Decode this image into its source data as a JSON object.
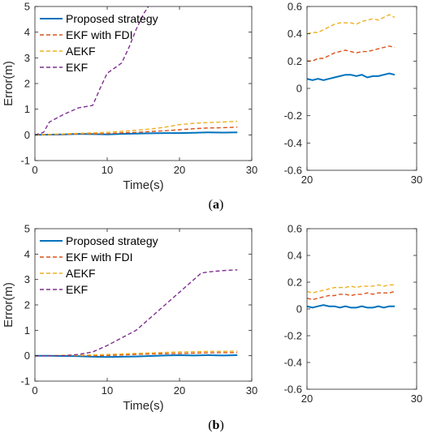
{
  "series_colors": {
    "proposed": "#0072BD",
    "ekf_fdi": "#D95319",
    "aekf": "#EDB120",
    "ekf": "#7E2F8E"
  },
  "legend": [
    "Proposed strategy",
    "EKF with FDI",
    "AEKF",
    "EKF"
  ],
  "chart_data": [
    {
      "type": "line",
      "panel": "(a) left",
      "caption_letter": "a",
      "xlabel": "Time(s)",
      "ylabel": "Error(m)",
      "xlim": [
        0,
        30
      ],
      "ylim": [
        -1,
        5
      ],
      "xticks": [
        0,
        10,
        20,
        30
      ],
      "yticks": [
        -1,
        0,
        1,
        2,
        3,
        4,
        5
      ],
      "grid": false,
      "legend_position": "top-left",
      "series": [
        {
          "name": "Proposed strategy",
          "style": "solid",
          "x": [
            0,
            2,
            4,
            6,
            8,
            10,
            12,
            14,
            16,
            18,
            20,
            22,
            24,
            26,
            28
          ],
          "y": [
            0,
            0.01,
            0.02,
            0.04,
            0.03,
            0.02,
            0.04,
            0.05,
            0.06,
            0.07,
            0.07,
            0.08,
            0.1,
            0.09,
            0.1
          ]
        },
        {
          "name": "EKF with FDI",
          "style": "dashed",
          "x": [
            0,
            2,
            4,
            6,
            8,
            10,
            12,
            14,
            16,
            18,
            20,
            22,
            24,
            26,
            28
          ],
          "y": [
            0,
            0.01,
            0.02,
            0.04,
            0.04,
            0.05,
            0.08,
            0.1,
            0.13,
            0.16,
            0.2,
            0.24,
            0.27,
            0.28,
            0.3
          ]
        },
        {
          "name": "AEKF",
          "style": "dashed",
          "x": [
            0,
            2,
            4,
            6,
            8,
            10,
            12,
            14,
            16,
            18,
            20,
            22,
            24,
            26,
            28
          ],
          "y": [
            0,
            0.02,
            0.04,
            0.06,
            0.08,
            0.1,
            0.14,
            0.18,
            0.23,
            0.3,
            0.4,
            0.45,
            0.48,
            0.5,
            0.53
          ]
        },
        {
          "name": "EKF",
          "style": "dashed",
          "x": [
            0,
            1.2,
            2,
            4,
            6,
            8,
            9,
            10,
            11,
            12,
            13,
            14,
            15,
            15.7
          ],
          "y": [
            0,
            0.1,
            0.5,
            0.8,
            1.05,
            1.15,
            1.8,
            2.4,
            2.6,
            2.8,
            3.4,
            4.1,
            4.7,
            5
          ]
        }
      ]
    },
    {
      "type": "line",
      "panel": "(a) right",
      "xlim": [
        20,
        30
      ],
      "ylim": [
        -0.6,
        0.6
      ],
      "xticks": [
        20,
        30
      ],
      "yticks": [
        -0.6,
        -0.4,
        -0.2,
        0,
        0.2,
        0.4,
        0.6
      ],
      "grid": false,
      "series": [
        {
          "name": "Proposed strategy",
          "style": "solid",
          "x": [
            20,
            20.5,
            21,
            21.5,
            22,
            22.5,
            23,
            23.5,
            24,
            24.5,
            25,
            25.5,
            26,
            26.5,
            27,
            27.5,
            28
          ],
          "y": [
            0.07,
            0.06,
            0.07,
            0.06,
            0.07,
            0.08,
            0.09,
            0.1,
            0.1,
            0.09,
            0.1,
            0.08,
            0.09,
            0.09,
            0.1,
            0.11,
            0.1
          ]
        },
        {
          "name": "EKF with FDI",
          "style": "dashed",
          "x": [
            20,
            20.5,
            21,
            21.5,
            22,
            22.5,
            23,
            23.5,
            24,
            24.5,
            25,
            25.5,
            26,
            26.5,
            27,
            27.5,
            28
          ],
          "y": [
            0.2,
            0.2,
            0.22,
            0.22,
            0.24,
            0.26,
            0.27,
            0.28,
            0.27,
            0.26,
            0.27,
            0.27,
            0.28,
            0.29,
            0.3,
            0.31,
            0.3
          ]
        },
        {
          "name": "AEKF",
          "style": "dashed",
          "x": [
            20,
            20.5,
            21,
            21.5,
            22,
            22.5,
            23,
            23.5,
            24,
            24.5,
            25,
            25.5,
            26,
            26.5,
            27,
            27.5,
            28
          ],
          "y": [
            0.4,
            0.41,
            0.41,
            0.43,
            0.45,
            0.47,
            0.48,
            0.48,
            0.48,
            0.47,
            0.49,
            0.5,
            0.51,
            0.5,
            0.52,
            0.54,
            0.52
          ]
        }
      ]
    },
    {
      "type": "line",
      "panel": "(b) left",
      "caption_letter": "b",
      "xlabel": "Time(s)",
      "ylabel": "Error(m)",
      "xlim": [
        0,
        30
      ],
      "ylim": [
        -1,
        5
      ],
      "xticks": [
        0,
        10,
        20,
        30
      ],
      "yticks": [
        -1,
        0,
        1,
        2,
        3,
        4,
        5
      ],
      "grid": false,
      "legend_position": "top-left",
      "series": [
        {
          "name": "Proposed strategy",
          "style": "solid",
          "x": [
            0,
            2,
            4,
            6,
            8,
            10,
            12,
            14,
            16,
            18,
            20,
            22,
            24,
            26,
            28
          ],
          "y": [
            0,
            0,
            -0.01,
            -0.02,
            -0.04,
            -0.05,
            -0.04,
            -0.03,
            -0.01,
            0.01,
            0.02,
            0.01,
            0.02,
            0.01,
            0.02
          ]
        },
        {
          "name": "EKF with FDI",
          "style": "dashed",
          "x": [
            0,
            2,
            4,
            6,
            8,
            10,
            12,
            14,
            16,
            18,
            20,
            22,
            24,
            26,
            28
          ],
          "y": [
            0,
            0,
            0.01,
            0.01,
            0,
            0.01,
            0.03,
            0.05,
            0.07,
            0.08,
            0.09,
            0.1,
            0.11,
            0.12,
            0.12
          ]
        },
        {
          "name": "AEKF",
          "style": "dashed",
          "x": [
            0,
            2,
            4,
            6,
            8,
            10,
            12,
            14,
            16,
            18,
            20,
            22,
            24,
            26,
            28
          ],
          "y": [
            0,
            0,
            0.02,
            0.02,
            0.03,
            0.05,
            0.07,
            0.09,
            0.11,
            0.13,
            0.15,
            0.16,
            0.17,
            0.17,
            0.18
          ]
        },
        {
          "name": "EKF",
          "style": "dashed",
          "x": [
            0,
            2,
            4,
            6,
            8,
            10,
            12,
            14,
            16,
            18,
            20,
            22,
            23,
            24,
            26,
            28
          ],
          "y": [
            0,
            0,
            0,
            0.05,
            0.15,
            0.4,
            0.7,
            1.0,
            1.5,
            2.0,
            2.5,
            3.0,
            3.25,
            3.3,
            3.35,
            3.38
          ]
        }
      ]
    },
    {
      "type": "line",
      "panel": "(b) right",
      "xlim": [
        20,
        30
      ],
      "ylim": [
        -0.6,
        0.6
      ],
      "xticks": [
        20,
        30
      ],
      "yticks": [
        -0.6,
        -0.4,
        -0.2,
        0,
        0.2,
        0.4,
        0.6
      ],
      "grid": false,
      "series": [
        {
          "name": "Proposed strategy",
          "style": "solid",
          "x": [
            20,
            20.5,
            21,
            21.5,
            22,
            22.5,
            23,
            23.5,
            24,
            24.5,
            25,
            25.5,
            26,
            26.5,
            27,
            27.5,
            28
          ],
          "y": [
            0.02,
            0.01,
            0.02,
            0.03,
            0.02,
            0.02,
            0.01,
            0.02,
            0.01,
            0.01,
            0.02,
            0.01,
            0.01,
            0.02,
            0.01,
            0.02,
            0.02
          ]
        },
        {
          "name": "EKF with FDI",
          "style": "dashed",
          "x": [
            20,
            20.5,
            21,
            21.5,
            22,
            22.5,
            23,
            23.5,
            24,
            24.5,
            25,
            25.5,
            26,
            26.5,
            27,
            27.5,
            28
          ],
          "y": [
            0.08,
            0.07,
            0.08,
            0.09,
            0.1,
            0.1,
            0.11,
            0.11,
            0.1,
            0.11,
            0.11,
            0.12,
            0.11,
            0.12,
            0.12,
            0.12,
            0.13
          ]
        },
        {
          "name": "AEKF",
          "style": "dashed",
          "x": [
            20,
            20.5,
            21,
            21.5,
            22,
            22.5,
            23,
            23.5,
            24,
            24.5,
            25,
            25.5,
            26,
            26.5,
            27,
            27.5,
            28
          ],
          "y": [
            0.13,
            0.12,
            0.13,
            0.14,
            0.15,
            0.16,
            0.16,
            0.16,
            0.17,
            0.16,
            0.17,
            0.17,
            0.17,
            0.18,
            0.17,
            0.18,
            0.18
          ]
        }
      ]
    }
  ]
}
